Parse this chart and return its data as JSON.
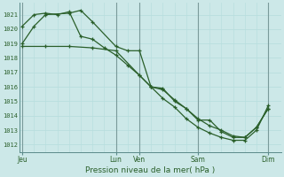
{
  "title": "Pression niveau de la mer( hPa )",
  "bg_color": "#cce8e8",
  "grid_minor_color": "#b8dede",
  "grid_major_color": "#aad0d0",
  "line_color": "#2a5f2a",
  "ylim": [
    1011.5,
    1021.8
  ],
  "yticks": [
    1012,
    1013,
    1014,
    1015,
    1016,
    1017,
    1018,
    1019,
    1020,
    1021
  ],
  "x_day_labels": [
    "Jeu",
    "Lun",
    "Ven",
    "Sam",
    "Dim"
  ],
  "x_day_positions": [
    0.0,
    3.333,
    4.167,
    6.25,
    8.75
  ],
  "xlim": [
    -0.1,
    9.2
  ],
  "series1_x": [
    0.0,
    0.42,
    0.83,
    1.67,
    2.08,
    2.5,
    3.33,
    3.75,
    4.17,
    4.58,
    5.0,
    5.42,
    5.83,
    6.25,
    6.67,
    7.08,
    7.5,
    7.92,
    8.33,
    8.75
  ],
  "series1_y": [
    1019.0,
    1020.2,
    1021.0,
    1021.1,
    1021.3,
    1020.5,
    1018.8,
    1018.5,
    1018.5,
    1016.0,
    1015.9,
    1015.0,
    1014.5,
    1013.7,
    1013.7,
    1012.9,
    1012.5,
    1012.5,
    1013.2,
    1014.5
  ],
  "series2_x": [
    0.0,
    0.42,
    0.83,
    1.25,
    1.67,
    2.08,
    2.5,
    2.92,
    3.33,
    3.75,
    4.17,
    4.58,
    5.0,
    5.42,
    5.83,
    6.25,
    6.67,
    7.08,
    7.5,
    7.92,
    8.33,
    8.75
  ],
  "series2_y": [
    1020.2,
    1021.0,
    1021.1,
    1021.0,
    1021.2,
    1019.5,
    1019.3,
    1018.7,
    1018.2,
    1017.5,
    1016.8,
    1016.0,
    1015.8,
    1015.1,
    1014.5,
    1013.8,
    1013.3,
    1013.0,
    1012.6,
    1012.5,
    1013.2,
    1014.5
  ],
  "series3_x": [
    0.0,
    0.83,
    1.67,
    2.5,
    3.33,
    4.17,
    4.58,
    5.0,
    5.42,
    5.83,
    6.25,
    6.67,
    7.08,
    7.5,
    7.92,
    8.33,
    8.75
  ],
  "series3_y": [
    1018.8,
    1018.8,
    1018.8,
    1018.7,
    1018.5,
    1016.8,
    1016.0,
    1015.2,
    1014.6,
    1013.8,
    1013.2,
    1012.8,
    1012.5,
    1012.3,
    1012.3,
    1013.0,
    1014.7
  ],
  "vline_positions": [
    0.0,
    3.333,
    4.167,
    6.25,
    8.75
  ],
  "minor_vlines": [
    0.417,
    0.833,
    1.25,
    1.667,
    2.083,
    2.5,
    2.917,
    3.75,
    4.583,
    5.0,
    5.417,
    5.833,
    6.667,
    7.083,
    7.5,
    7.917,
    8.333
  ]
}
